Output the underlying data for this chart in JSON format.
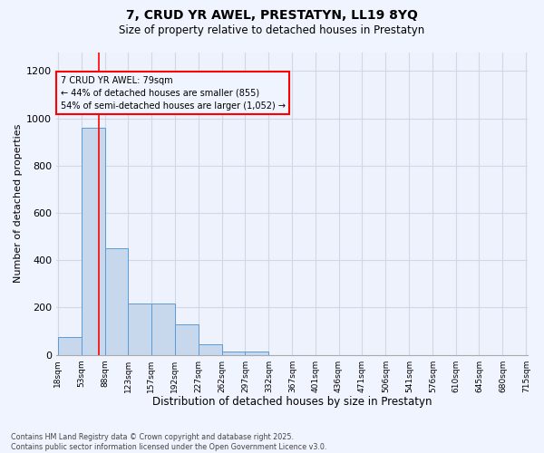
{
  "title_line1": "7, CRUD YR AWEL, PRESTATYN, LL19 8YQ",
  "title_line2": "Size of property relative to detached houses in Prestatyn",
  "xlabel": "Distribution of detached houses by size in Prestatyn",
  "ylabel": "Number of detached properties",
  "bar_color": "#c8d8ec",
  "bar_edge_color": "#5b9bd5",
  "grid_color": "#d0d8e8",
  "vline_color": "red",
  "vline_x": 79,
  "annotation_text": "7 CRUD YR AWEL: 79sqm\n← 44% of detached houses are smaller (855)\n54% of semi-detached houses are larger (1,052) →",
  "annotation_box_color": "red",
  "bin_edges": [
    18,
    53,
    88,
    123,
    157,
    192,
    227,
    262,
    297,
    332,
    367,
    401,
    436,
    471,
    506,
    541,
    576,
    610,
    645,
    680,
    715
  ],
  "bin_counts": [
    75,
    960,
    450,
    215,
    215,
    130,
    45,
    15,
    15,
    0,
    0,
    0,
    0,
    0,
    0,
    0,
    0,
    0,
    0,
    0
  ],
  "ylim": [
    0,
    1280
  ],
  "yticks": [
    0,
    200,
    400,
    600,
    800,
    1000,
    1200
  ],
  "footnote": "Contains HM Land Registry data © Crown copyright and database right 2025.\nContains public sector information licensed under the Open Government Licence v3.0.",
  "background_color": "#f0f4ff",
  "plot_bg_color": "#eef2fc"
}
